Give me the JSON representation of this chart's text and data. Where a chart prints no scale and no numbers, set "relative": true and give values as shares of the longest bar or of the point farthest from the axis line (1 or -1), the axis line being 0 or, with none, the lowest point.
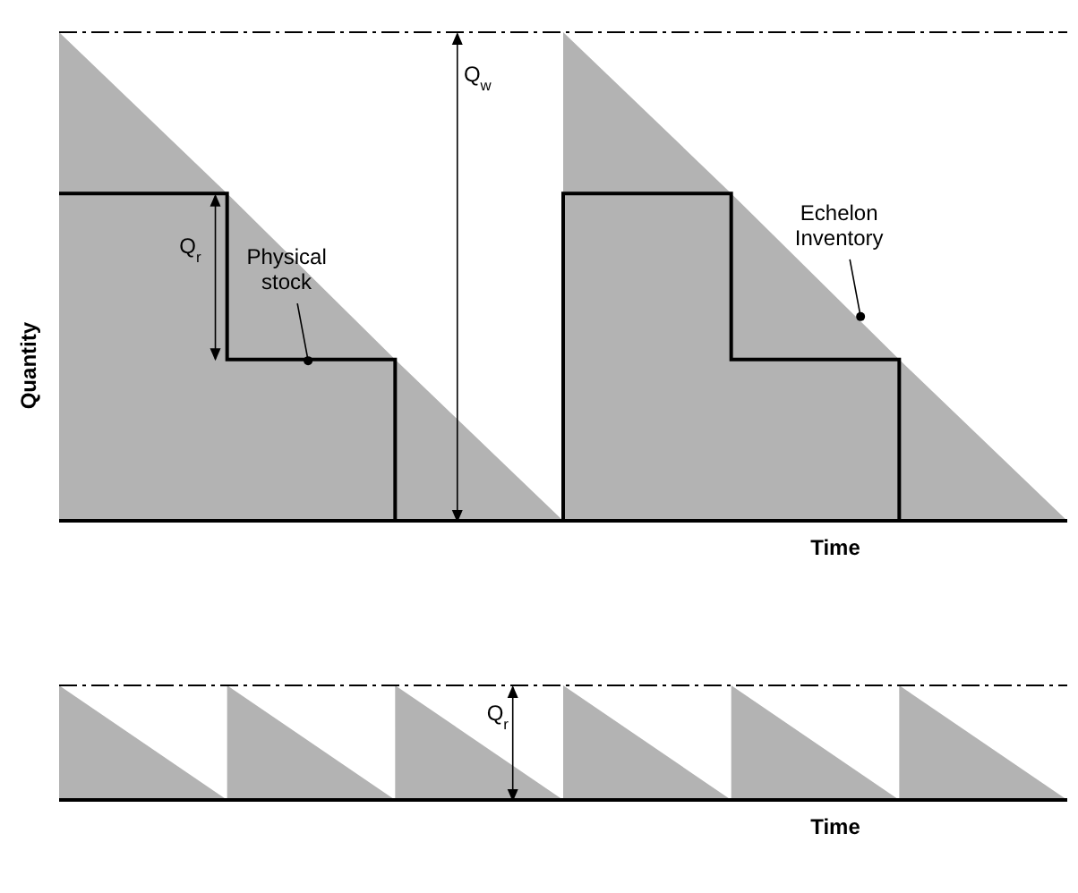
{
  "chart_data": [
    {
      "type": "area",
      "relative": true,
      "ylabel": "Quantity",
      "xlabel": "Time",
      "categories": [
        null,
        null,
        null,
        null,
        null,
        null,
        null
      ],
      "legend": false,
      "grid": false,
      "series": [
        {
          "color": "#b3b3b3",
          "values": [
            1,
            0.67,
            0.33,
            0,
            null,
            null,
            null
          ]
        },
        {
          "color": "#b3b3b3",
          "values": [
            null,
            null,
            null,
            1,
            0.67,
            0.33,
            0
          ]
        },
        {
          "type": "step",
          "color": "#000000",
          "values": [
            0.67,
            0.33,
            0,
            0.67,
            0.33,
            0,
            0
          ]
        }
      ],
      "ref_lines": [
        {
          "axis": "y",
          "value": 1,
          "color": "#000000",
          "line_style": "dashed"
        }
      ],
      "annotations": [
        "Q$_{w}$",
        "Q$_{r}$",
        "Physical stock",
        "Echelon Inventory"
      ]
    },
    {
      "type": "area",
      "relative": true,
      "xlabel": "Time",
      "categories": [
        null,
        null,
        null,
        null,
        null,
        null,
        null
      ],
      "legend": false,
      "grid": false,
      "series": [
        {
          "color": "#b3b3b3",
          "values": [
            1,
            0,
            null,
            null,
            null,
            null,
            null
          ]
        },
        {
          "color": "#b3b3b3",
          "values": [
            null,
            1,
            0,
            null,
            null,
            null,
            null
          ]
        },
        {
          "color": "#b3b3b3",
          "values": [
            null,
            null,
            1,
            0,
            null,
            null,
            null
          ]
        },
        {
          "color": "#b3b3b3",
          "values": [
            null,
            null,
            null,
            1,
            0,
            null,
            null
          ]
        },
        {
          "color": "#b3b3b3",
          "values": [
            null,
            null,
            null,
            null,
            1,
            0,
            null
          ]
        },
        {
          "color": "#b3b3b3",
          "values": [
            null,
            null,
            null,
            null,
            null,
            1,
            0
          ]
        }
      ],
      "ref_lines": [
        {
          "axis": "y",
          "value": 1,
          "color": "#000000",
          "line_style": "dashed"
        }
      ],
      "annotations": [
        "Q$_{r}$"
      ]
    }
  ]
}
